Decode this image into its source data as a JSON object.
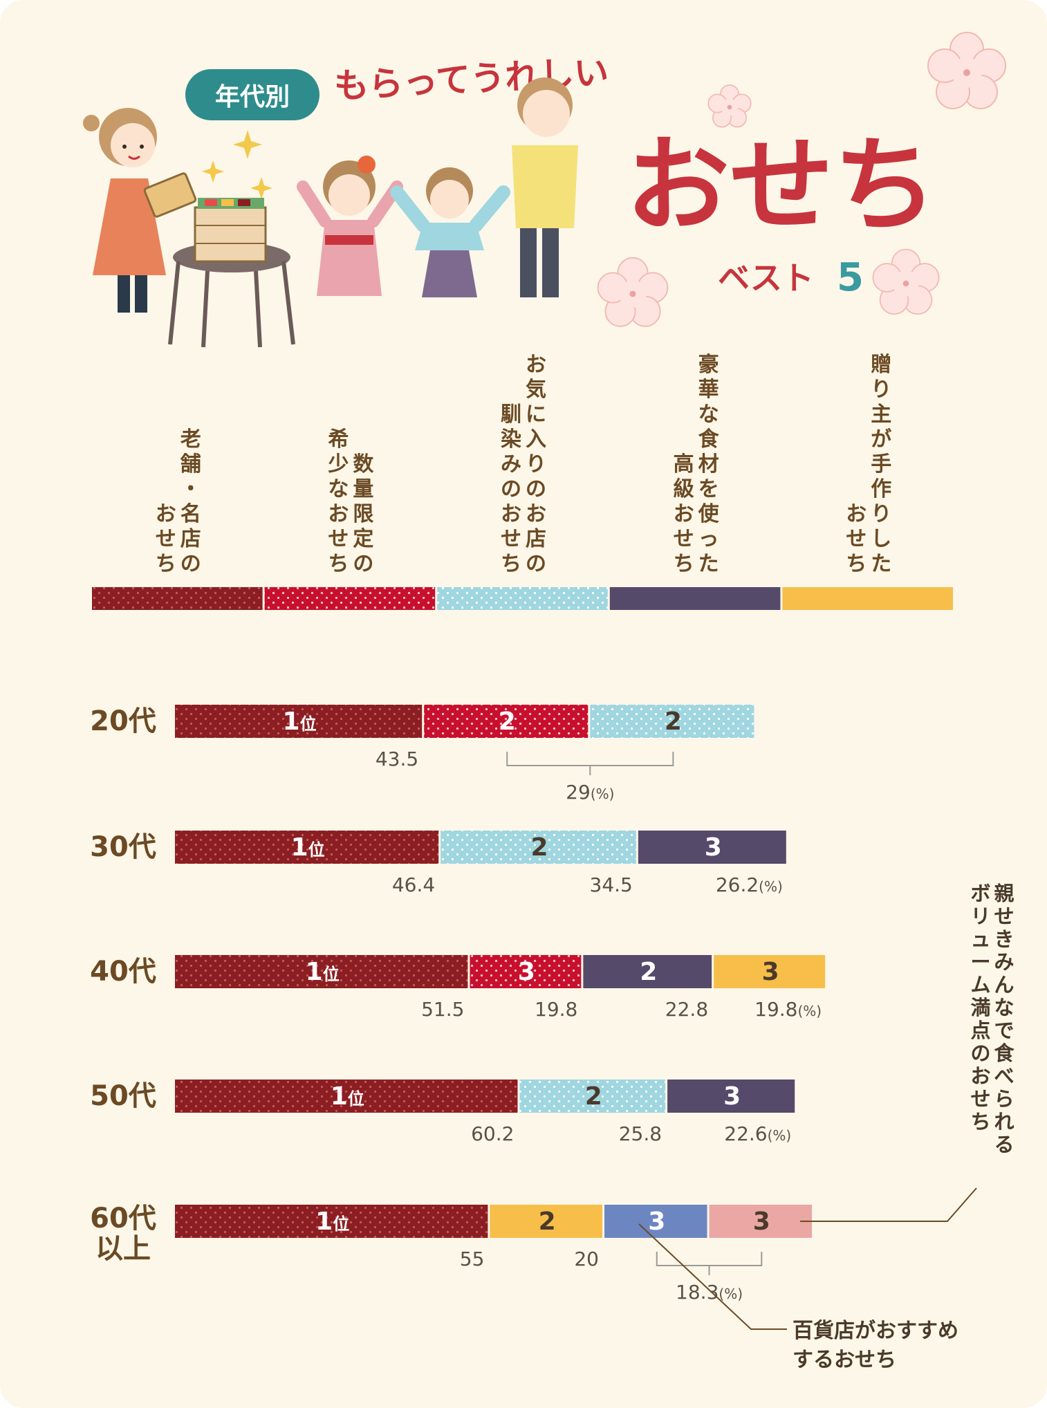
{
  "header": {
    "badge": "年代別",
    "subtitle": "もらってうれしい",
    "title": "おせち",
    "best_label": "ベスト",
    "best_number": "5"
  },
  "colors": {
    "cat0": "#8b1e23",
    "cat1": "#c8102e",
    "cat2": "#9fd6e0",
    "cat3": "#554a6a",
    "cat4": "#f7be4a",
    "cat5": "#6c86c2",
    "cat6": "#eaa7a4",
    "title": "#c7343d",
    "badge": "#2f8c8c",
    "age_text": "#6b4a24"
  },
  "legend": [
    {
      "key": "cat0",
      "lines": [
        "老舗・名店の",
        "おせち"
      ]
    },
    {
      "key": "cat1",
      "lines": [
        "数量限定の",
        "希少なおせち"
      ]
    },
    {
      "key": "cat2",
      "lines": [
        "お気に入りのお店の",
        "馴染みのおせち"
      ]
    },
    {
      "key": "cat3",
      "lines": [
        "豪華な食材を使った",
        "高級おせち"
      ]
    },
    {
      "key": "cat4",
      "lines": [
        "贈り主が手作りした",
        "おせち"
      ]
    }
  ],
  "extra_labels": {
    "volume": [
      "親せきみんなで食べられる",
      "ボリューム満点のおせち"
    ],
    "department": [
      "百貨店がおすすめ",
      "するおせち"
    ]
  },
  "chart_data": {
    "type": "bar",
    "orientation": "horizontal-stacked",
    "unit": "(%)",
    "series_names": {
      "cat0": "老舗・名店のおせち",
      "cat1": "数量限定の希少なおせち",
      "cat2": "お気に入りのお店の馴染みのおせち",
      "cat3": "豪華な食材を使った高級おせち",
      "cat4": "贈り主が手作りしたおせち",
      "cat5": "百貨店がおすすめするおせち",
      "cat6": "親せきみんなで食べられるボリューム満点のおせち"
    },
    "rows": [
      {
        "age": [
          "20代"
        ],
        "segments": [
          {
            "cat": "cat0",
            "rank": "1",
            "rank_suffix": "位",
            "value": 43.5
          },
          {
            "cat": "cat1",
            "rank": "2",
            "value": 29
          },
          {
            "cat": "cat2",
            "rank": "2",
            "value": 29
          }
        ],
        "value_labels": [
          {
            "text": "43.5",
            "seg": 0
          },
          {
            "text": "29",
            "unit": "(%)",
            "bracket": [
              1,
              2
            ]
          }
        ]
      },
      {
        "age": [
          "30代"
        ],
        "segments": [
          {
            "cat": "cat0",
            "rank": "1",
            "rank_suffix": "位",
            "value": 46.4
          },
          {
            "cat": "cat2",
            "rank": "2",
            "value": 34.5
          },
          {
            "cat": "cat3",
            "rank": "3",
            "value": 26.2
          }
        ],
        "value_labels": [
          {
            "text": "46.4",
            "seg": 0
          },
          {
            "text": "34.5",
            "seg": 1
          },
          {
            "text": "26.2",
            "unit": "(%)",
            "seg": 2
          }
        ]
      },
      {
        "age": [
          "40代"
        ],
        "segments": [
          {
            "cat": "cat0",
            "rank": "1",
            "rank_suffix": "位",
            "value": 51.5
          },
          {
            "cat": "cat1",
            "rank": "3",
            "value": 19.8
          },
          {
            "cat": "cat3",
            "rank": "2",
            "value": 22.8
          },
          {
            "cat": "cat4",
            "rank": "3",
            "value": 19.8
          }
        ],
        "value_labels": [
          {
            "text": "51.5",
            "seg": 0
          },
          {
            "text": "19.8",
            "seg": 1
          },
          {
            "text": "22.8",
            "seg": 2
          },
          {
            "text": "19.8",
            "unit": "(%)",
            "seg": 3
          }
        ]
      },
      {
        "age": [
          "50代"
        ],
        "segments": [
          {
            "cat": "cat0",
            "rank": "1",
            "rank_suffix": "位",
            "value": 60.2
          },
          {
            "cat": "cat2",
            "rank": "2",
            "value": 25.8
          },
          {
            "cat": "cat3",
            "rank": "3",
            "value": 22.6
          }
        ],
        "value_labels": [
          {
            "text": "60.2",
            "seg": 0
          },
          {
            "text": "25.8",
            "seg": 1
          },
          {
            "text": "22.6",
            "unit": "(%)",
            "seg": 2
          }
        ]
      },
      {
        "age": [
          "60代",
          "以上"
        ],
        "segments": [
          {
            "cat": "cat0",
            "rank": "1",
            "rank_suffix": "位",
            "value": 55
          },
          {
            "cat": "cat4",
            "rank": "2",
            "value": 20
          },
          {
            "cat": "cat5",
            "rank": "3",
            "value": 18.3
          },
          {
            "cat": "cat6",
            "rank": "3",
            "value": 18.3
          }
        ],
        "value_labels": [
          {
            "text": "55",
            "seg": 0
          },
          {
            "text": "20",
            "seg": 1
          },
          {
            "text": "18.3",
            "unit": "(%)",
            "bracket": [
              2,
              3
            ]
          }
        ]
      }
    ]
  }
}
